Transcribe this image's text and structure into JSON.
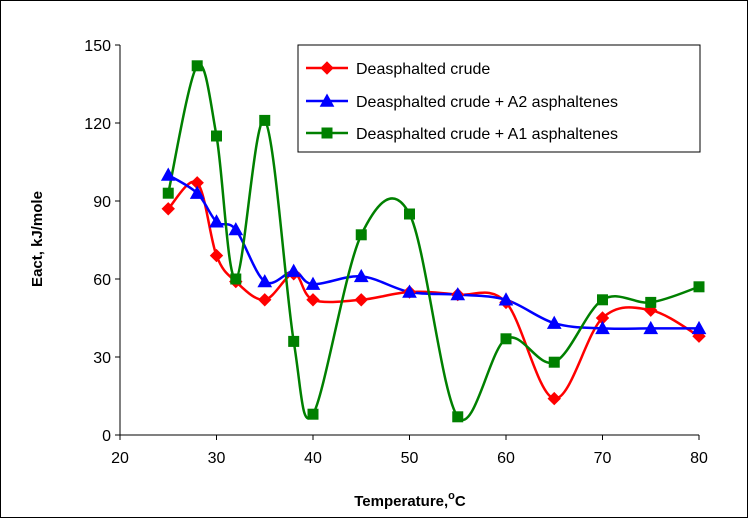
{
  "chart_data": {
    "type": "line",
    "xlabel": "Temperature,",
    "xlabel_unit_sup": "o",
    "xlabel_unit": "C",
    "ylabel": "Eact, kJ/mole",
    "xlim": [
      20,
      80
    ],
    "ylim": [
      0,
      150
    ],
    "x_ticks": [
      "20",
      "30",
      "40",
      "50",
      "60",
      "70",
      "80"
    ],
    "y_ticks": [
      "0",
      "30",
      "60",
      "90",
      "120",
      "150"
    ],
    "grid": false,
    "legend_position": "top-right",
    "series": [
      {
        "name": "Deasphalted crude",
        "color": "#ff0000",
        "marker": "diamond",
        "x": [
          25,
          28,
          30,
          32,
          35,
          38,
          40,
          45,
          50,
          55,
          60,
          65,
          70,
          75,
          80
        ],
        "y": [
          87,
          97,
          69,
          59,
          52,
          62,
          52,
          52,
          55,
          54,
          51,
          14,
          45,
          48,
          38
        ]
      },
      {
        "name": "Deasphalted crude + A2 asphaltenes",
        "color": "#0000ff",
        "marker": "triangle",
        "x": [
          25,
          28,
          30,
          32,
          35,
          38,
          40,
          45,
          50,
          55,
          60,
          65,
          70,
          75,
          80
        ],
        "y": [
          100,
          93,
          82,
          79,
          59,
          63,
          58,
          61,
          55,
          54,
          52,
          43,
          41,
          41,
          41
        ]
      },
      {
        "name": "Deasphalted crude + A1 asphaltenes",
        "color": "#008000",
        "marker": "square",
        "x": [
          25,
          28,
          30,
          32,
          35,
          38,
          40,
          45,
          50,
          55,
          60,
          65,
          70,
          75,
          80
        ],
        "y": [
          93,
          142,
          115,
          60,
          121,
          36,
          8,
          77,
          85,
          7,
          37,
          28,
          52,
          51,
          57
        ]
      }
    ]
  }
}
